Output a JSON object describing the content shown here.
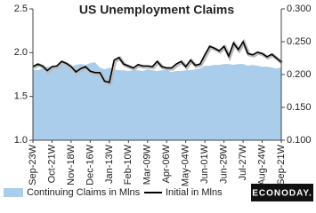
{
  "chart_data": {
    "type": "area-line",
    "title": "US Unemployment Claims",
    "categories": [
      "Sep-23W",
      null,
      null,
      null,
      "Oct-21W",
      null,
      null,
      null,
      "Nov-18W",
      null,
      null,
      null,
      "Dec-16W",
      null,
      null,
      null,
      "Jan-13W",
      null,
      null,
      null,
      "Feb-10W",
      null,
      null,
      null,
      "Mar-09W",
      null,
      null,
      null,
      "Apr-06W",
      null,
      null,
      null,
      "May-04W",
      null,
      null,
      null,
      "Jun-01W",
      null,
      null,
      null,
      "Jun-29W",
      null,
      null,
      null,
      "Jul-27W",
      null,
      null,
      null,
      "Aug-24W",
      null,
      null,
      null,
      "Sep-21W"
    ],
    "series": [
      {
        "name": "Continuing Claims in Mlns",
        "color": "#a9cdea",
        "axis": "y",
        "values": [
          1.81,
          1.8,
          1.82,
          1.84,
          1.84,
          1.86,
          1.86,
          1.87,
          1.84,
          1.86,
          1.87,
          1.86,
          1.88,
          1.89,
          1.83,
          1.81,
          1.83,
          1.81,
          1.8,
          1.8,
          1.79,
          1.8,
          1.8,
          1.79,
          1.81,
          1.8,
          1.79,
          1.8,
          1.8,
          1.78,
          1.79,
          1.79,
          1.8,
          1.8,
          1.81,
          1.82,
          1.85,
          1.85,
          1.86,
          1.86,
          1.87,
          1.87,
          1.86,
          1.87,
          1.87,
          1.85,
          1.86,
          1.85,
          1.84,
          1.84,
          1.83,
          1.82,
          1.83
        ]
      },
      {
        "name": "Initial in Mlns",
        "color": "#000000",
        "axis": "y2",
        "values": [
          0.212,
          0.216,
          0.213,
          0.206,
          0.212,
          0.213,
          0.22,
          0.217,
          0.212,
          0.204,
          0.209,
          0.212,
          0.205,
          0.203,
          0.203,
          0.19,
          0.188,
          0.222,
          0.226,
          0.216,
          0.213,
          0.21,
          0.215,
          0.213,
          0.213,
          0.212,
          0.22,
          0.212,
          0.21,
          0.21,
          0.216,
          0.22,
          0.212,
          0.222,
          0.214,
          0.216,
          0.23,
          0.243,
          0.24,
          0.236,
          0.243,
          0.228,
          0.248,
          0.238,
          0.25,
          0.232,
          0.23,
          0.234,
          0.232,
          0.227,
          0.231,
          0.225,
          0.219
        ]
      }
    ],
    "ylim": [
      1.0,
      2.5
    ],
    "yticks": [
      {
        "value": 1.0,
        "label": "1.0"
      },
      1.5,
      {
        "value": 2.0,
        "label": "2.0"
      },
      2.5
    ],
    "y2lim": [
      0.1,
      0.3
    ],
    "y2ticks": [
      {
        "value": 0.1,
        "label": "0.100"
      },
      {
        "value": 0.15,
        "label": "0.150"
      },
      {
        "value": 0.2,
        "label": "0.200"
      },
      {
        "value": 0.25,
        "label": "0.250"
      },
      {
        "value": 0.3,
        "label": "0.300"
      }
    ],
    "legend": "bottom"
  },
  "logo": "ECONODAY."
}
